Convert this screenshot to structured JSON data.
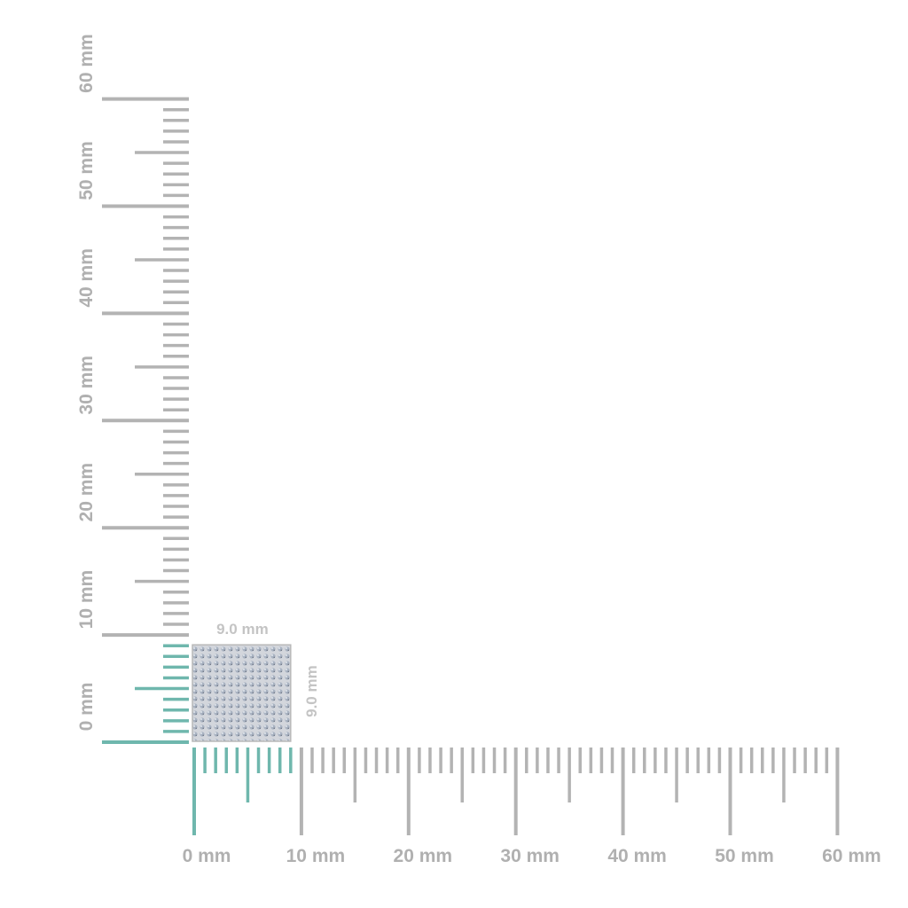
{
  "ruler": {
    "unit": "mm",
    "max": 60,
    "major_step": 10,
    "x_labels": [
      "0 mm",
      "10 mm",
      "20 mm",
      "30 mm",
      "40 mm",
      "50 mm",
      "60 mm"
    ],
    "y_labels": [
      "0 mm",
      "10 mm",
      "20 mm",
      "30 mm",
      "40 mm",
      "50 mm",
      "60 mm"
    ],
    "tick_color": "#b3b3b3",
    "highlight_color": "#6fb7ad"
  },
  "product": {
    "width_mm": 9.0,
    "height_mm": 9.0,
    "width_label": "9.0 mm",
    "height_label": "9.0 mm",
    "fill_color": "#c9ccd3"
  }
}
